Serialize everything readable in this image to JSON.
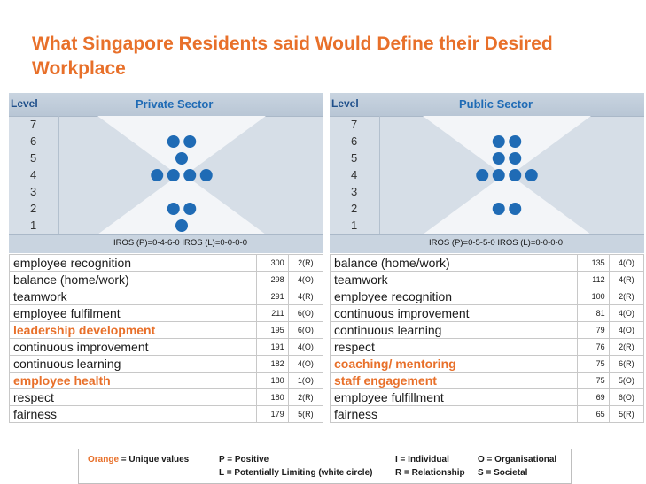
{
  "title": "What Singapore Residents said Would Define their Desired Workplace",
  "colors": {
    "title": "#e8702a",
    "unique": "#e8702a",
    "dot": "#1f6bb5",
    "sector_title": "#1f6bb5"
  },
  "panels": [
    {
      "level_label": "Level",
      "sector": "Private Sector",
      "levels": [
        "7",
        "6",
        "5",
        "4",
        "3",
        "2",
        "1"
      ],
      "dots_per_level": {
        "7": 0,
        "6": 2,
        "5": 1,
        "4": 4,
        "3": 0,
        "2": 2,
        "1": 1
      },
      "iros": "IROS (P)=0-4-6-0  IROS (L)=0-0-0-0",
      "rows": [
        {
          "label": "employee recognition",
          "value": "300",
          "code": "2(R)",
          "unique": false
        },
        {
          "label": "balance (home/work)",
          "value": "298",
          "code": "4(O)",
          "unique": false
        },
        {
          "label": "teamwork",
          "value": "291",
          "code": "4(R)",
          "unique": false
        },
        {
          "label": "employee fulfilment",
          "value": "211",
          "code": "6(O)",
          "unique": false
        },
        {
          "label": "leadership development",
          "value": "195",
          "code": "6(O)",
          "unique": true
        },
        {
          "label": "continuous improvement",
          "value": "191",
          "code": "4(O)",
          "unique": false
        },
        {
          "label": "continuous learning",
          "value": "182",
          "code": "4(O)",
          "unique": false
        },
        {
          "label": "employee health",
          "value": "180",
          "code": "1(O)",
          "unique": true
        },
        {
          "label": "respect",
          "value": "180",
          "code": "2(R)",
          "unique": false
        },
        {
          "label": "fairness",
          "value": "179",
          "code": "5(R)",
          "unique": false
        }
      ]
    },
    {
      "level_label": "Level",
      "sector": "Public Sector",
      "levels": [
        "7",
        "6",
        "5",
        "4",
        "3",
        "2",
        "1"
      ],
      "dots_per_level": {
        "7": 0,
        "6": 2,
        "5": 2,
        "4": 4,
        "3": 0,
        "2": 2,
        "1": 0
      },
      "iros": "IROS (P)=0-5-5-0  IROS (L)=0-0-0-0",
      "rows": [
        {
          "label": "balance (home/work)",
          "value": "135",
          "code": "4(O)",
          "unique": false
        },
        {
          "label": "teamwork",
          "value": "112",
          "code": "4(R)",
          "unique": false
        },
        {
          "label": "employee recognition",
          "value": "100",
          "code": "2(R)",
          "unique": false
        },
        {
          "label": "continuous improvement",
          "value": "81",
          "code": "4(O)",
          "unique": false
        },
        {
          "label": "continuous learning",
          "value": "79",
          "code": "4(O)",
          "unique": false
        },
        {
          "label": "respect",
          "value": "76",
          "code": "2(R)",
          "unique": false
        },
        {
          "label": "coaching/ mentoring",
          "value": "75",
          "code": "6(R)",
          "unique": true
        },
        {
          "label": "staff engagement",
          "value": "75",
          "code": "5(O)",
          "unique": true
        },
        {
          "label": "employee fulfillment",
          "value": "69",
          "code": "6(O)",
          "unique": false
        },
        {
          "label": "fairness",
          "value": "65",
          "code": "5(R)",
          "unique": false
        }
      ]
    }
  ],
  "legend": {
    "orange_word": "Orange",
    "orange_rest": " = Unique values",
    "p": "P = Positive",
    "l": "L = Potentially Limiting (white circle)",
    "i": "I = Individual",
    "r": "R = Relationship",
    "o": "O = Organisational",
    "s": "S = Societal"
  }
}
